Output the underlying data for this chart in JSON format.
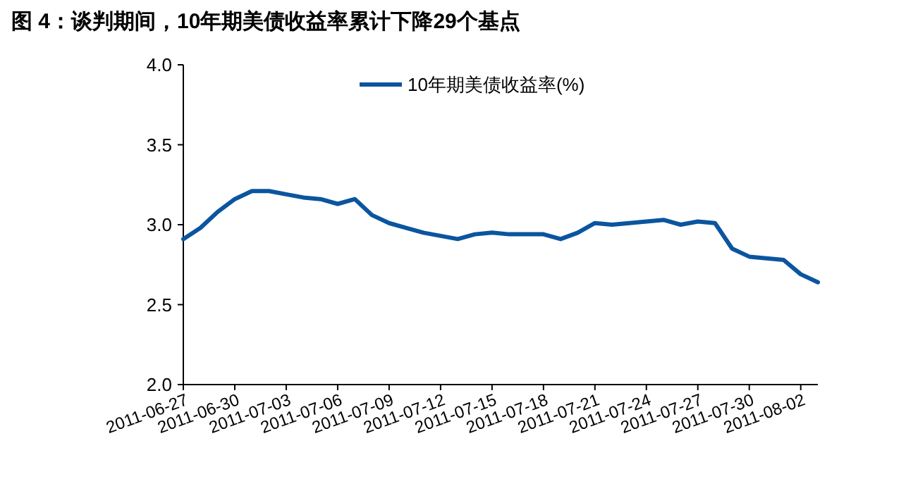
{
  "chart_data": {
    "type": "line",
    "title": "图 4：谈判期间，10年期美债收益率累计下降29个基点",
    "x": [
      "2011-06-27",
      "2011-06-28",
      "2011-06-29",
      "2011-06-30",
      "2011-07-01",
      "2011-07-02",
      "2011-07-03",
      "2011-07-04",
      "2011-07-05",
      "2011-07-06",
      "2011-07-07",
      "2011-07-08",
      "2011-07-09",
      "2011-07-10",
      "2011-07-11",
      "2011-07-12",
      "2011-07-13",
      "2011-07-14",
      "2011-07-15",
      "2011-07-16",
      "2011-07-17",
      "2011-07-18",
      "2011-07-19",
      "2011-07-20",
      "2011-07-21",
      "2011-07-22",
      "2011-07-23",
      "2011-07-24",
      "2011-07-25",
      "2011-07-26",
      "2011-07-27",
      "2011-07-28",
      "2011-07-29",
      "2011-07-30",
      "2011-07-31",
      "2011-08-01",
      "2011-08-02",
      "2011-08-03"
    ],
    "series": [
      {
        "name": "10年期美债收益率(%)",
        "color": "#0b559f",
        "values": [
          2.91,
          2.98,
          3.08,
          3.16,
          3.21,
          3.21,
          3.19,
          3.17,
          3.16,
          3.13,
          3.16,
          3.06,
          3.01,
          2.98,
          2.95,
          2.93,
          2.91,
          2.94,
          2.95,
          2.94,
          2.94,
          2.94,
          2.91,
          2.95,
          3.01,
          3.0,
          3.01,
          3.02,
          3.03,
          3.0,
          3.02,
          3.01,
          2.85,
          2.8,
          2.79,
          2.78,
          2.69,
          2.64
        ]
      }
    ],
    "xlim": [
      "2011-06-27",
      "2011-08-03"
    ],
    "xticks": [
      "2011-06-27",
      "2011-06-30",
      "2011-07-03",
      "2011-07-06",
      "2011-07-09",
      "2011-07-12",
      "2011-07-15",
      "2011-07-18",
      "2011-07-21",
      "2011-07-24",
      "2011-07-27",
      "2011-07-30",
      "2011-08-02"
    ],
    "ylim": [
      2,
      4
    ],
    "yticks": [
      {
        "value": 2,
        "label": "2.0"
      },
      {
        "value": 2.5,
        "label": "2.5"
      },
      {
        "value": 3,
        "label": "3.0"
      },
      {
        "value": 3.5,
        "label": "3.5"
      },
      {
        "value": 4,
        "label": "4.0"
      }
    ],
    "grid": false,
    "legend": "top",
    "marker": "none",
    "line_style": "solid"
  }
}
